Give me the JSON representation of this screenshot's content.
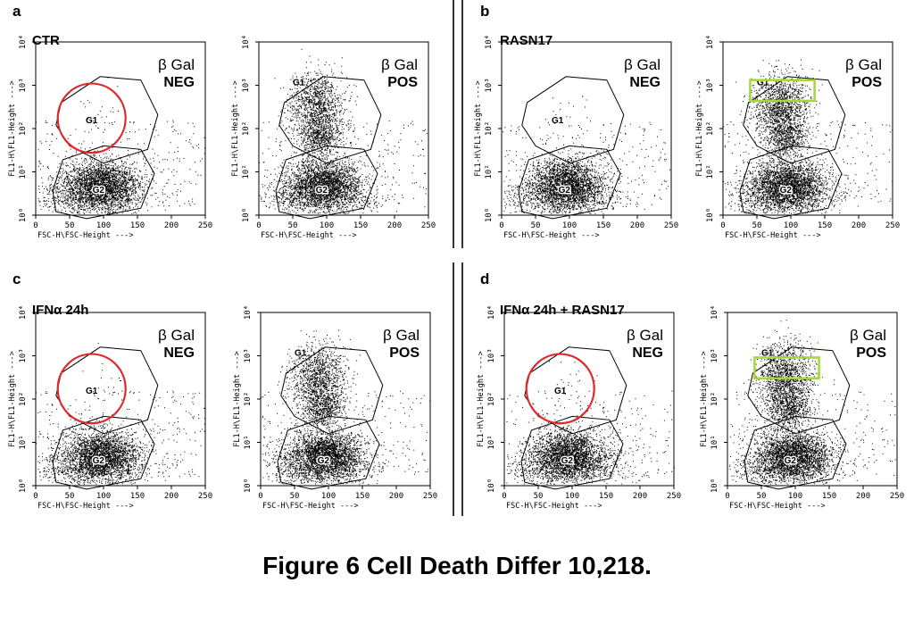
{
  "caption": "Figure 6 Cell Death Differ 10,218.",
  "colors": {
    "circle": "#e0282a",
    "box": "#a8d63a",
    "dots": "#000000"
  },
  "axes": {
    "xlabel": "FSC-H\\FSC-Height --->",
    "ylabel": "FL1-H\\FL1-Height --->",
    "xticks": [
      "0",
      "50",
      "100",
      "150",
      "200",
      "250"
    ],
    "yticks": [
      "10⁰",
      "10¹",
      "10²",
      "10³",
      "10⁴"
    ],
    "xlim": [
      0,
      250
    ]
  },
  "gate_labels": {
    "g1": "G1",
    "g2": "G2"
  },
  "panels": [
    {
      "letter": "a",
      "condition": "CTR",
      "neg": {
        "marker": "β Gal",
        "status": "NEG"
      },
      "pos": {
        "marker": "β Gal",
        "status": "POS"
      }
    },
    {
      "letter": "b",
      "condition": "RASN17",
      "neg": {
        "marker": "β Gal",
        "status": "NEG"
      },
      "pos": {
        "marker": "β Gal",
        "status": "POS"
      }
    },
    {
      "letter": "c",
      "condition": "IFNα 24h",
      "neg": {
        "marker": "β Gal",
        "status": "NEG"
      },
      "pos": {
        "marker": "β Gal",
        "status": "POS"
      }
    },
    {
      "letter": "d",
      "condition": "IFNα 24h + RASN17",
      "neg": {
        "marker": "β Gal",
        "status": "NEG"
      },
      "pos": {
        "marker": "β Gal",
        "status": "POS"
      }
    }
  ],
  "chart_data": [
    {
      "type": "scatter",
      "panel": "a",
      "sample": "CTR",
      "title": "β Gal NEG",
      "xlabel": "FSC-H\\FSC-Height --->",
      "ylabel": "FL1-H\\FL1-Height --->",
      "xlim": [
        0,
        250
      ],
      "ylim_decades": [
        0,
        4
      ],
      "gates": {
        "G1": "sparse",
        "G2": "dense"
      },
      "highlight": "circle around G1"
    },
    {
      "type": "scatter",
      "panel": "a",
      "sample": "CTR",
      "title": "β Gal POS",
      "xlabel": "FSC-H\\FSC-Height --->",
      "ylabel": "FL1-H\\FL1-Height --->",
      "xlim": [
        0,
        250
      ],
      "ylim_decades": [
        0,
        4
      ],
      "gates": {
        "G1": "dense",
        "G2": "dense"
      }
    },
    {
      "type": "scatter",
      "panel": "b",
      "sample": "RASN17",
      "title": "β Gal NEG",
      "xlabel": "FSC-H\\FSC-Height --->",
      "ylabel": "FL1-H\\FL1-Height --->",
      "xlim": [
        0,
        250
      ],
      "ylim_decades": [
        0,
        4
      ],
      "gates": {
        "G1": "sparse",
        "G2": "dense"
      }
    },
    {
      "type": "scatter",
      "panel": "b",
      "sample": "RASN17",
      "title": "β Gal POS",
      "xlabel": "FSC-H\\FSC-Height --->",
      "ylabel": "FL1-H\\FL1-Height --->",
      "xlim": [
        0,
        250
      ],
      "ylim_decades": [
        0,
        4
      ],
      "gates": {
        "G1": "dense",
        "G2": "dense"
      },
      "highlight": "box on top of G1"
    },
    {
      "type": "scatter",
      "panel": "c",
      "sample": "IFNα 24h",
      "title": "β Gal NEG",
      "xlabel": "FSC-H\\FSC-Height --->",
      "ylabel": "FL1-H\\FL1-Height --->",
      "xlim": [
        0,
        250
      ],
      "ylim_decades": [
        0,
        4
      ],
      "gates": {
        "G1": "sparse",
        "G2": "dense"
      },
      "highlight": "circle around G1"
    },
    {
      "type": "scatter",
      "panel": "c",
      "sample": "IFNα 24h",
      "title": "β Gal POS",
      "xlabel": "FSC-H\\FSC-Height --->",
      "ylabel": "FL1-H\\FL1-Height --->",
      "xlim": [
        0,
        250
      ],
      "ylim_decades": [
        0,
        4
      ],
      "gates": {
        "G1": "dense",
        "G2": "dense"
      }
    },
    {
      "type": "scatter",
      "panel": "d",
      "sample": "IFNα 24h + RASN17",
      "title": "β Gal NEG",
      "xlabel": "FSC-H\\FSC-Height --->",
      "ylabel": "FL1-H\\FL1-Height --->",
      "xlim": [
        0,
        250
      ],
      "ylim_decades": [
        0,
        4
      ],
      "gates": {
        "G1": "sparse",
        "G2": "dense"
      },
      "highlight": "circle around G1"
    },
    {
      "type": "scatter",
      "panel": "d",
      "sample": "IFNα 24h + RASN17",
      "title": "β Gal POS",
      "xlabel": "FSC-H\\FSC-Height --->",
      "ylabel": "FL1-H\\FL1-Height --->",
      "xlim": [
        0,
        250
      ],
      "ylim_decades": [
        0,
        4
      ],
      "gates": {
        "G1": "dense",
        "G2": "dense"
      },
      "highlight": "box on top of G1"
    }
  ]
}
